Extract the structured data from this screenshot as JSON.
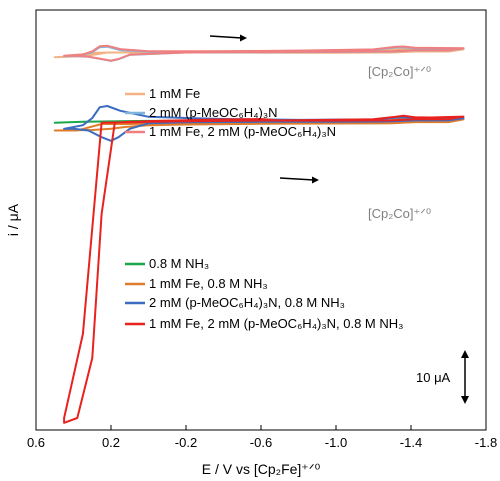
{
  "chart_data": {
    "type": "line",
    "xlabel": "E / V vs [Cp₂Fe]⁺ᐟ⁰",
    "ylabel": "i / μA",
    "xlim": [
      0.6,
      -1.8
    ],
    "x_ticks": [
      "0.6",
      "0.2",
      "-0.2",
      "-0.6",
      "-1.0",
      "-1.4",
      "-1.8"
    ],
    "x_tick_values": [
      0.6,
      0.2,
      -0.2,
      -0.6,
      -1.0,
      -1.4,
      -1.8
    ],
    "ylim": [
      -100,
      75
    ],
    "grid": false,
    "scale_bar": {
      "label": "10 μA",
      "value": 10
    },
    "panels": [
      {
        "name": "top",
        "annotation": "[Cp₂Co]⁺ᐟ⁰",
        "legend_position": "left",
        "series": [
          {
            "name": "1 mM Fe",
            "color": "#f4b183",
            "x": [
              0.5,
              0.35,
              0.28,
              0.22,
              0.15,
              0.0,
              -0.4,
              -0.8,
              -1.2,
              -1.32,
              -1.36,
              -1.42,
              -1.5,
              -1.68,
              -1.6,
              -1.42,
              -1.36,
              -1.3,
              -1.0,
              -0.6,
              -0.2,
              0.1,
              0.2,
              0.28,
              0.35,
              0.45,
              0.5
            ],
            "y": [
              55.3,
              55.8,
              56.5,
              57.3,
              57.3,
              57.4,
              57.8,
              57.9,
              58.2,
              58.6,
              58.8,
              58.5,
              58.5,
              58.6,
              57.7,
              57.7,
              57.5,
              57.3,
              57.2,
              57.2,
              57.3,
              57.3,
              57.3,
              57.2,
              56.5,
              55.5,
              55.3
            ]
          },
          {
            "name": "2 mM (p-MeOC₆H₄)₃N",
            "color": "#7fb4dd",
            "x": [
              0.45,
              0.35,
              0.3,
              0.26,
              0.22,
              0.15,
              0.0,
              -0.4,
              -0.8,
              -1.2,
              -1.32,
              -1.36,
              -1.42,
              -1.5,
              -1.68,
              -1.6,
              -1.42,
              -1.3,
              -1.0,
              -0.6,
              -0.2,
              0.1,
              0.16,
              0.2,
              0.25,
              0.32,
              0.4,
              0.45
            ],
            "y": [
              55.8,
              56.3,
              57.5,
              59.5,
              59.7,
              58.3,
              57.6,
              57.7,
              58.0,
              58.4,
              59.4,
              59.5,
              59.1,
              59.0,
              59.0,
              58.2,
              58.2,
              57.7,
              57.5,
              57.4,
              57.3,
              56.3,
              54.5,
              53.8,
              54.5,
              55.5,
              55.8,
              55.8
            ]
          },
          {
            "name": "1 mM Fe, 2 mM (p-MeOC₆H₄)₃N",
            "color": "#f08080",
            "x": [
              0.45,
              0.35,
              0.3,
              0.26,
              0.22,
              0.15,
              0.0,
              -0.4,
              -0.8,
              -1.2,
              -1.32,
              -1.36,
              -1.42,
              -1.5,
              -1.68,
              -1.6,
              -1.42,
              -1.3,
              -1.0,
              -0.6,
              -0.2,
              0.1,
              0.16,
              0.2,
              0.25,
              0.32,
              0.4,
              0.45
            ],
            "y": [
              55.9,
              56.5,
              57.8,
              59.9,
              60.1,
              58.7,
              57.8,
              57.8,
              58.1,
              58.6,
              59.7,
              59.8,
              59.3,
              59.2,
              59.1,
              58.2,
              58.2,
              57.8,
              57.6,
              57.5,
              57.3,
              56.4,
              54.6,
              53.9,
              54.6,
              55.6,
              55.9,
              55.9
            ]
          }
        ]
      },
      {
        "name": "bottom",
        "annotation": "[Cp₂Co]⁺ᐟ⁰",
        "legend_position": "bottom-left",
        "series": [
          {
            "name": "0.8 M NH₃",
            "color": "#1aa64a",
            "x": [
              0.5,
              0.35,
              0.2,
              0.0,
              -0.6
            ],
            "y": [
              28.0,
              28.4,
              28.6,
              28.8,
              28.7
            ]
          },
          {
            "name": "1 mM Fe, 0.8 M NH₃",
            "color": "#e07d2c",
            "x": [
              0.5,
              0.38,
              0.25,
              0.15,
              0.0,
              -0.4,
              -0.8,
              -1.2,
              -1.32,
              -1.36,
              -1.42,
              -1.5,
              -1.68,
              -1.6,
              -1.42,
              -1.3,
              -1.0,
              -0.6,
              -0.2,
              0.0,
              0.12,
              0.2,
              0.3,
              0.4,
              0.5
            ],
            "y": [
              24.8,
              24.8,
              27.5,
              27.5,
              27.6,
              28.0,
              28.3,
              28.6,
              29.3,
              29.6,
              29.2,
              29.1,
              29.4,
              28.3,
              28.3,
              27.8,
              27.7,
              27.6,
              27.3,
              27.0,
              26.3,
              25.5,
              25.0,
              24.9,
              24.8
            ]
          },
          {
            "name": "2 mM (p-MeOC₆H₄)₃N, 0.8 M NH₃",
            "color": "#3b6cc0",
            "x": [
              0.45,
              0.35,
              0.3,
              0.26,
              0.22,
              0.15,
              0.0,
              -0.2,
              -0.4,
              -0.6,
              -0.8,
              -1.2,
              -1.32,
              -1.36,
              -1.42,
              -1.5,
              -1.68,
              -1.6,
              -1.42,
              -1.3,
              -1.0,
              -0.6,
              -0.2,
              0.0,
              0.1,
              0.16,
              0.2,
              0.25,
              0.32,
              0.4,
              0.45
            ],
            "y": [
              25.5,
              27.0,
              30.0,
              34.5,
              35.0,
              33.0,
              30.5,
              30.0,
              29.6,
              29.4,
              29.2,
              29.4,
              30.1,
              30.3,
              29.9,
              29.8,
              29.9,
              29.0,
              29.0,
              28.6,
              28.4,
              28.4,
              28.2,
              27.8,
              25.5,
              22.0,
              20.5,
              22.0,
              24.8,
              25.5,
              25.5
            ]
          },
          {
            "name": "1 mM Fe, 2 mM (p-MeOC₆H₄)₃N, 0.8 M NH₃",
            "color": "#e8231f",
            "x": [
              0.25,
              0.2,
              0.12,
              0.05,
              -0.02,
              -0.15,
              -0.4,
              -0.8,
              -1.2,
              -1.32,
              -1.36,
              -1.42,
              -1.5,
              -1.68,
              -1.6,
              -1.42,
              -1.3,
              -1.0,
              -0.7,
              -0.6,
              -0.3,
              0.0,
              0.05,
              0.1,
              0.18,
              0.25,
              0.3,
              0.38,
              0.45,
              0.45,
              0.35,
              0.25
            ],
            "y": [
              28.0,
              28.1,
              28.2,
              28.3,
              28.4,
              28.6,
              28.8,
              29.1,
              29.5,
              30.5,
              30.9,
              30.3,
              30.2,
              30.6,
              29.5,
              29.5,
              29.0,
              28.9,
              28.9,
              29.6,
              29.3,
              28.7,
              28.5,
              28.4,
              28.0,
              -10.0,
              -70.0,
              -95.0,
              -97.0,
              -95.0,
              -60.0,
              28.0
            ]
          }
        ]
      }
    ]
  }
}
